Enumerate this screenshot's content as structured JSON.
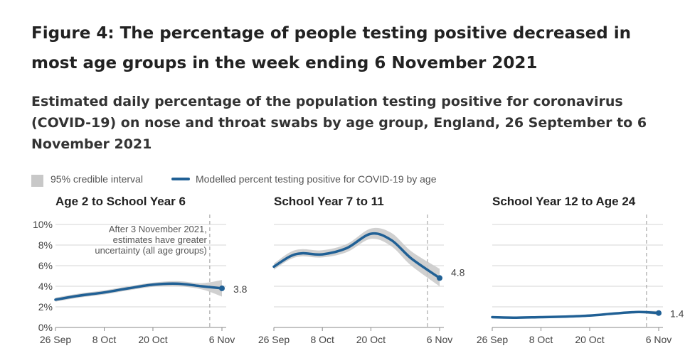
{
  "title": "Figure 4: The percentage of people testing positive decreased in most age groups in the week ending 6 November 2021",
  "subtitle": "Estimated daily percentage of the population testing positive for coronavirus (COVID-19) on nose and throat swabs by age group, England, 26 September to 6 November 2021",
  "legend": {
    "interval_label": "95% credible interval",
    "line_label": "Modelled percent testing positive for COVID-19 by age"
  },
  "colors": {
    "line": "#206095",
    "band": "#c8c8c8",
    "grid": "#d6d6d6",
    "axis": "#555555"
  },
  "chart_data": {
    "type": "line",
    "x_ticks": [
      "26 Sep",
      "8 Oct",
      "20 Oct",
      "6 Nov"
    ],
    "x_range": [
      "2021-09-26",
      "2021-11-06"
    ],
    "y_ticks": [
      "0%",
      "2%",
      "4%",
      "6%",
      "8%",
      "10%"
    ],
    "ylim": [
      0,
      10
    ],
    "marker_date": "2021-11-03",
    "annotation": [
      "After 3 November 2021,",
      "estimates have greater",
      "uncertainty (all age groups)"
    ],
    "panels": [
      {
        "title": "Age 2 to School Year 6",
        "end_label": "3.8",
        "points": [
          [
            "2021-09-26",
            2.7,
            2.5,
            2.9
          ],
          [
            "2021-10-02",
            3.1,
            2.9,
            3.3
          ],
          [
            "2021-10-08",
            3.4,
            3.2,
            3.6
          ],
          [
            "2021-10-14",
            3.8,
            3.6,
            4.0
          ],
          [
            "2021-10-20",
            4.15,
            3.95,
            4.35
          ],
          [
            "2021-10-26",
            4.25,
            4.0,
            4.5
          ],
          [
            "2021-11-01",
            4.0,
            3.7,
            4.3
          ],
          [
            "2021-11-06",
            3.8,
            3.0,
            4.6
          ]
        ]
      },
      {
        "title": "School Year 7 to 11",
        "end_label": "4.8",
        "points": [
          [
            "2021-09-26",
            5.9,
            5.6,
            6.2
          ],
          [
            "2021-09-30",
            6.9,
            6.6,
            7.3
          ],
          [
            "2021-10-03",
            7.2,
            6.9,
            7.6
          ],
          [
            "2021-10-08",
            7.1,
            6.8,
            7.5
          ],
          [
            "2021-10-14",
            7.7,
            7.3,
            8.1
          ],
          [
            "2021-10-20",
            9.1,
            8.6,
            9.6
          ],
          [
            "2021-10-25",
            8.5,
            7.9,
            9.2
          ],
          [
            "2021-10-30",
            6.7,
            6.0,
            7.4
          ],
          [
            "2021-11-06",
            4.8,
            4.0,
            5.7
          ]
        ]
      },
      {
        "title": "School Year 12 to Age 24",
        "end_label": "1.4",
        "points": [
          [
            "2021-09-26",
            1.0,
            0.9,
            1.1
          ],
          [
            "2021-10-02",
            0.95,
            0.85,
            1.05
          ],
          [
            "2021-10-08",
            1.0,
            0.9,
            1.1
          ],
          [
            "2021-10-14",
            1.05,
            0.95,
            1.15
          ],
          [
            "2021-10-20",
            1.15,
            1.05,
            1.25
          ],
          [
            "2021-10-26",
            1.35,
            1.25,
            1.45
          ],
          [
            "2021-11-01",
            1.5,
            1.4,
            1.6
          ],
          [
            "2021-11-06",
            1.4,
            1.2,
            1.6
          ]
        ]
      }
    ]
  }
}
